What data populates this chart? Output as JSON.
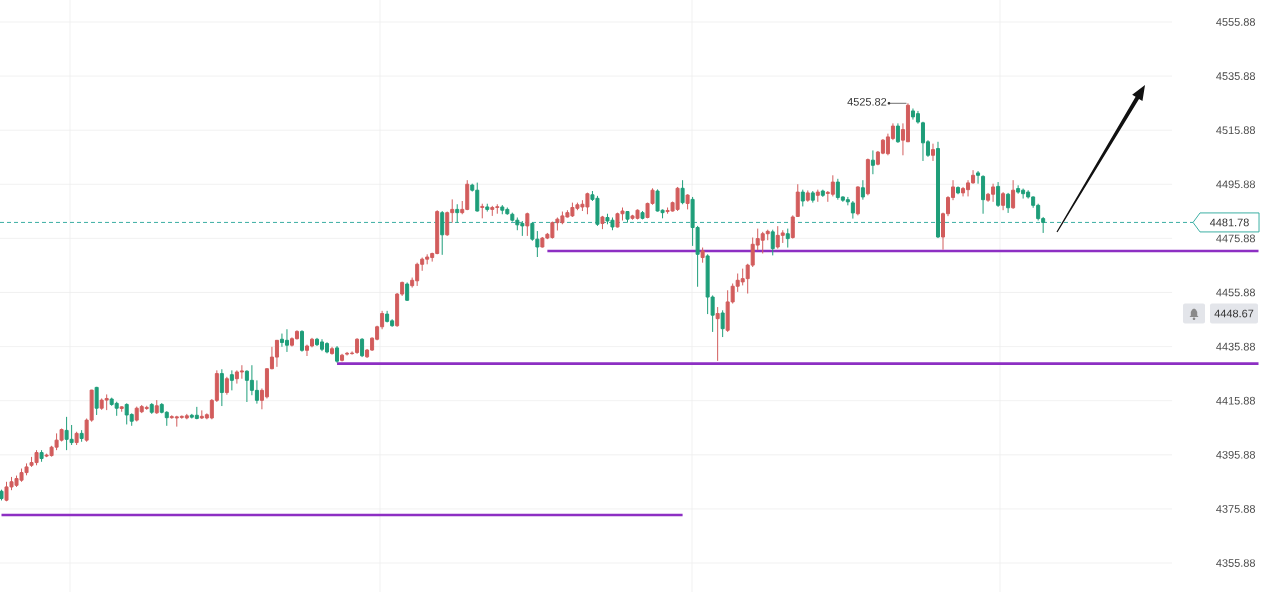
{
  "chart_data": {
    "type": "candlestick",
    "categories": [
      null,
      null,
      null,
      null,
      null,
      null,
      null,
      null,
      null,
      null,
      null,
      null,
      null,
      null,
      null,
      null,
      null,
      null,
      null,
      null,
      null,
      null,
      null,
      null,
      null,
      null,
      null,
      null,
      null,
      null,
      null,
      null,
      null,
      null,
      null,
      null,
      null,
      null,
      null,
      null,
      null,
      null,
      null,
      null,
      null,
      null,
      null,
      null,
      null,
      null,
      null,
      null,
      null,
      null,
      null,
      null,
      null,
      null,
      null,
      null,
      null,
      null,
      null,
      null,
      null,
      null,
      null,
      null,
      null,
      null,
      null,
      null,
      null,
      null,
      null,
      null,
      null,
      null,
      null,
      null,
      null,
      null,
      null,
      null,
      null,
      null,
      null,
      null,
      null,
      null,
      null,
      null,
      null,
      null,
      null,
      null,
      null,
      null,
      null,
      null,
      null,
      null,
      null,
      null,
      null,
      null,
      null,
      null,
      null,
      null,
      null,
      null,
      null,
      null,
      null,
      null,
      null,
      null,
      null,
      null,
      null,
      null,
      null,
      null,
      null,
      null,
      null,
      null,
      null,
      null,
      null,
      null,
      null,
      null,
      null,
      null,
      null,
      null,
      null,
      null,
      null,
      null,
      null,
      null,
      null,
      null,
      null,
      null,
      null,
      null,
      null,
      null,
      null,
      null,
      null,
      null,
      null,
      null,
      null,
      null,
      null,
      null,
      null,
      null,
      null,
      null,
      null,
      null,
      null,
      null,
      null,
      null,
      null,
      null,
      null,
      null,
      null,
      null,
      null,
      null,
      null,
      null,
      null,
      null,
      null,
      null,
      null,
      null,
      null,
      null,
      null,
      null,
      null,
      null,
      null,
      null,
      null,
      null,
      null,
      null,
      null,
      null,
      null,
      null,
      null,
      null,
      null,
      null,
      null,
      null,
      null,
      null,
      null,
      null,
      null,
      null,
      null,
      null,
      null,
      null,
      null,
      null,
      null,
      null,
      null,
      null,
      null,
      null,
      null,
      null,
      null,
      null,
      null,
      null,
      null,
      null,
      null,
      null,
      null,
      null,
      null,
      null,
      null,
      null,
      null,
      null,
      null,
      null,
      null,
      null,
      null,
      null
    ],
    "ohlc": [
      [
        4382.4,
        4383.0,
        4379.0,
        4379.7
      ],
      [
        4379.1,
        4385.9,
        4378.7,
        4384.0
      ],
      [
        4384.0,
        4387.7,
        4382.8,
        4385.9
      ],
      [
        4384.6,
        4388.2,
        4384.0,
        4387.1
      ],
      [
        4386.5,
        4390.8,
        4385.9,
        4389.3
      ],
      [
        4389.3,
        4392.7,
        4388.3,
        4391.4
      ],
      [
        4392.0,
        4395.1,
        4391.4,
        4393.0
      ],
      [
        4393.0,
        4397.6,
        4392.0,
        4396.7
      ],
      [
        4396.7,
        4397.6,
        4393.3,
        4394.5
      ],
      [
        4395.4,
        4396.3,
        4395.0,
        4395.8
      ],
      [
        4395.6,
        4399.2,
        4395.2,
        4398.7
      ],
      [
        4398.7,
        4403.8,
        4397.6,
        4401.3
      ],
      [
        4401.3,
        4405.6,
        4400.8,
        4405.2
      ],
      [
        4404.9,
        4409.9,
        4397.6,
        4401.6
      ],
      [
        4401.6,
        4406.9,
        4399.5,
        4400.4
      ],
      [
        4400.4,
        4404.4,
        4399.5,
        4403.8
      ],
      [
        4403.8,
        4405.0,
        4400.7,
        4401.9
      ],
      [
        4401.3,
        4409.3,
        4400.7,
        4408.7
      ],
      [
        4408.7,
        4419.9,
        4408.1,
        4419.8
      ],
      [
        4420.8,
        4421.0,
        4410.6,
        4413.1
      ],
      [
        4413.1,
        4416.7,
        4412.5,
        4416.1
      ],
      [
        4416.1,
        4418.2,
        4412.4,
        4416.7
      ],
      [
        4416.5,
        4417.0,
        4414.0,
        4414.5
      ],
      [
        4414.9,
        4415.5,
        4410.3,
        4413.1
      ],
      [
        4413.0,
        4413.8,
        4411.8,
        4413.6
      ],
      [
        4414.5,
        4414.9,
        4407.1,
        4410.6
      ],
      [
        4410.8,
        4411.2,
        4406.6,
        4408.3
      ],
      [
        4408.7,
        4413.7,
        4408.2,
        4413.1
      ],
      [
        4411.8,
        4414.3,
        4411.3,
        4413.7
      ],
      [
        4413.0,
        4414.0,
        4412.5,
        4413.4
      ],
      [
        4414.5,
        4415.0,
        4411.0,
        4411.6
      ],
      [
        4411.4,
        4416.1,
        4411.0,
        4414.0
      ],
      [
        4414.5,
        4415.0,
        4411.2,
        4411.6
      ],
      [
        4411.6,
        4412.0,
        4406.6,
        4409.6
      ],
      [
        4409.6,
        4410.5,
        4409.2,
        4410.0
      ],
      [
        4409.5,
        4410.3,
        4406.3,
        4409.9
      ],
      [
        4409.7,
        4410.4,
        4409.2,
        4410.1
      ],
      [
        4409.5,
        4411.0,
        4409.0,
        4410.3
      ],
      [
        4410.5,
        4411.0,
        4409.3,
        4409.8
      ],
      [
        4410.5,
        4413.6,
        4409.0,
        4409.3
      ],
      [
        4409.5,
        4412.3,
        4409.1,
        4410.1
      ],
      [
        4409.5,
        4411.2,
        4409.0,
        4410.7
      ],
      [
        4409.5,
        4416.5,
        4409.0,
        4416.0
      ],
      [
        4416.0,
        4427.1,
        4415.4,
        4425.9
      ],
      [
        4425.9,
        4427.5,
        4413.9,
        4418.9
      ],
      [
        4418.9,
        4424.7,
        4418.1,
        4424.0
      ],
      [
        4425.5,
        4427.1,
        4419.7,
        4423.4
      ],
      [
        4424.0,
        4427.1,
        4422.2,
        4426.5
      ],
      [
        4426.5,
        4429.0,
        4424.0,
        4426.9
      ],
      [
        4426.8,
        4427.1,
        4415.4,
        4423.4
      ],
      [
        4423.4,
        4429.0,
        4417.9,
        4419.7
      ],
      [
        4419.7,
        4423.4,
        4414.8,
        4416.0
      ],
      [
        4416.0,
        4420.4,
        4412.7,
        4419.7
      ],
      [
        4417.3,
        4427.8,
        4416.7,
        4427.7
      ],
      [
        4427.7,
        4435.8,
        4427.5,
        4432.0
      ],
      [
        4432.0,
        4438.3,
        4428.4,
        4438.2
      ],
      [
        4438.6,
        4440.7,
        4435.8,
        4437.4
      ],
      [
        4438.2,
        4442.3,
        4433.9,
        4436.4
      ],
      [
        4436.4,
        4439.3,
        4435.9,
        4438.8
      ],
      [
        4438.8,
        4441.9,
        4438.5,
        4441.5
      ],
      [
        4441.5,
        4441.9,
        4434.0,
        4434.5
      ],
      [
        4434.5,
        4436.6,
        4432.4,
        4436.1
      ],
      [
        4436.1,
        4439.1,
        4435.6,
        4438.6
      ],
      [
        4438.6,
        4439.1,
        4436.1,
        4436.6
      ],
      [
        4437.6,
        4438.6,
        4434.2,
        4434.9
      ],
      [
        4437.0,
        4437.5,
        4433.4,
        4433.9
      ],
      [
        4433.3,
        4435.8,
        4432.9,
        4435.1
      ],
      [
        4435.4,
        4436.1,
        4429.9,
        4430.5
      ],
      [
        4430.8,
        4433.2,
        4430.4,
        4432.7
      ],
      [
        4433.1,
        4433.9,
        4432.6,
        4433.4
      ],
      [
        4433.3,
        4434.1,
        4432.9,
        4433.5
      ],
      [
        4433.7,
        4439.0,
        4433.2,
        4438.6
      ],
      [
        4438.6,
        4439.0,
        4432.0,
        4432.5
      ],
      [
        4432.1,
        4435.0,
        4431.7,
        4434.6
      ],
      [
        4434.6,
        4439.3,
        4434.3,
        4439.0
      ],
      [
        4438.6,
        4443.6,
        4438.2,
        4443.2
      ],
      [
        4443.2,
        4449.1,
        4442.3,
        4448.1
      ],
      [
        4447.9,
        4449.1,
        4444.8,
        4445.2
      ],
      [
        4445.4,
        4446.0,
        4443.2,
        4443.6
      ],
      [
        4443.6,
        4455.7,
        4443.2,
        4455.3
      ],
      [
        4455.3,
        4459.9,
        4454.6,
        4459.6
      ],
      [
        4459.0,
        4459.6,
        4452.8,
        4453.0
      ],
      [
        4458.4,
        4461.4,
        4457.7,
        4460.4
      ],
      [
        4460.2,
        4466.9,
        4458.3,
        4466.3
      ],
      [
        4466.3,
        4468.8,
        4463.9,
        4468.2
      ],
      [
        4468.2,
        4470.0,
        4466.3,
        4469.0
      ],
      [
        4468.8,
        4470.6,
        4467.3,
        4470.3
      ],
      [
        4470.3,
        4486.3,
        4470.0,
        4485.8
      ],
      [
        4485.4,
        4486.0,
        4469.8,
        4477.2
      ],
      [
        4477.2,
        4485.8,
        4476.8,
        4485.4
      ],
      [
        4485.4,
        4490.3,
        4481.7,
        4486.6
      ],
      [
        4486.6,
        4488.5,
        4481.7,
        4485.4
      ],
      [
        4485.4,
        4489.7,
        4484.8,
        4486.6
      ],
      [
        4486.6,
        4497.4,
        4486.3,
        4495.9
      ],
      [
        4495.6,
        4496.1,
        4493.2,
        4493.7
      ],
      [
        4493.7,
        4496.5,
        4485.8,
        4486.0
      ],
      [
        4487.3,
        4488.7,
        4483.3,
        4487.7
      ],
      [
        4487.5,
        4488.7,
        4485.8,
        4486.6
      ],
      [
        4486.6,
        4487.9,
        4484.2,
        4487.3
      ],
      [
        4487.3,
        4488.5,
        4485.0,
        4487.6
      ],
      [
        4487.5,
        4488.2,
        4484.8,
        4486.3
      ],
      [
        4486.6,
        4487.3,
        4484.6,
        4485.0
      ],
      [
        4484.8,
        4485.4,
        4482.1,
        4482.6
      ],
      [
        4482.6,
        4483.6,
        4478.9,
        4480.9
      ],
      [
        4481.4,
        4482.3,
        4476.8,
        4480.5
      ],
      [
        4480.5,
        4485.4,
        4476.8,
        4485.0
      ],
      [
        4481.4,
        4481.8,
        4475.0,
        4475.6
      ],
      [
        4475.6,
        4478.6,
        4469.0,
        4472.7
      ],
      [
        4472.7,
        4476.4,
        4472.5,
        4476.0
      ],
      [
        4476.0,
        4477.9,
        4475.6,
        4477.4
      ],
      [
        4476.2,
        4482.1,
        4475.8,
        4481.7
      ],
      [
        4481.7,
        4483.6,
        4478.8,
        4483.0
      ],
      [
        4481.7,
        4485.8,
        4481.1,
        4484.2
      ],
      [
        4483.8,
        4486.3,
        4483.6,
        4485.4
      ],
      [
        4484.2,
        4489.1,
        4483.8,
        4487.3
      ],
      [
        4487.0,
        4489.1,
        4486.3,
        4488.3
      ],
      [
        4487.5,
        4490.0,
        4486.0,
        4488.5
      ],
      [
        4487.5,
        4492.8,
        4484.8,
        4492.4
      ],
      [
        4492.0,
        4493.4,
        4489.7,
        4490.3
      ],
      [
        4490.7,
        4491.6,
        4480.5,
        4481.1
      ],
      [
        4481.4,
        4484.2,
        4479.3,
        4483.8
      ],
      [
        4483.6,
        4485.0,
        4481.1,
        4482.3
      ],
      [
        4482.6,
        4483.6,
        4478.9,
        4480.1
      ],
      [
        4480.1,
        4485.4,
        4479.9,
        4485.0
      ],
      [
        4485.0,
        4487.3,
        4482.5,
        4486.0
      ],
      [
        4485.8,
        4486.0,
        4481.7,
        4483.0
      ],
      [
        4483.3,
        4484.6,
        4482.8,
        4484.2
      ],
      [
        4483.3,
        4486.6,
        4482.9,
        4486.3
      ],
      [
        4485.4,
        4486.0,
        4482.9,
        4483.3
      ],
      [
        4483.6,
        4489.1,
        4483.3,
        4488.8
      ],
      [
        4488.8,
        4494.4,
        4488.3,
        4493.7
      ],
      [
        4493.4,
        4494.0,
        4485.8,
        4486.0
      ],
      [
        4486.3,
        4486.6,
        4483.3,
        4485.4
      ],
      [
        4485.8,
        4487.3,
        4485.0,
        4486.2
      ],
      [
        4486.0,
        4489.5,
        4485.8,
        4489.1
      ],
      [
        4486.6,
        4494.9,
        4486.0,
        4494.4
      ],
      [
        4494.4,
        4497.4,
        4488.5,
        4489.1
      ],
      [
        4488.8,
        4492.2,
        4486.6,
        4491.9
      ],
      [
        4490.3,
        4491.2,
        4473.1,
        4479.9
      ],
      [
        4479.9,
        4480.5,
        4458.0,
        4470.0
      ],
      [
        4468.8,
        4472.5,
        4466.9,
        4471.3
      ],
      [
        4469.4,
        4470.0,
        4447.9,
        4454.2
      ],
      [
        4454.2,
        4454.8,
        4441.3,
        4447.5
      ],
      [
        4446.2,
        4450.5,
        4430.6,
        4448.1
      ],
      [
        4448.3,
        4449.3,
        4439.4,
        4442.5
      ],
      [
        4441.9,
        4456.7,
        4441.3,
        4452.4
      ],
      [
        4452.4,
        4459.2,
        4451.8,
        4458.2
      ],
      [
        4458.2,
        4462.9,
        4456.1,
        4460.4
      ],
      [
        4459.8,
        4464.7,
        4458.5,
        4461.0
      ],
      [
        4461.0,
        4466.5,
        4455.5,
        4466.0
      ],
      [
        4466.0,
        4476.2,
        4465.3,
        4473.7
      ],
      [
        4473.4,
        4479.5,
        4471.5,
        4475.8
      ],
      [
        4475.2,
        4478.3,
        4470.3,
        4477.6
      ],
      [
        4477.6,
        4479.1,
        4475.2,
        4478.5
      ],
      [
        4478.3,
        4479.1,
        4469.6,
        4472.1
      ],
      [
        4472.7,
        4480.4,
        4472.1,
        4477.0
      ],
      [
        4477.0,
        4478.9,
        4474.2,
        4477.9
      ],
      [
        4477.6,
        4479.5,
        4472.5,
        4475.8
      ],
      [
        4476.2,
        4484.4,
        4475.8,
        4483.8
      ],
      [
        4484.0,
        4495.9,
        4483.8,
        4493.0
      ],
      [
        4493.0,
        4493.9,
        4487.7,
        4489.7
      ],
      [
        4490.0,
        4493.6,
        4489.4,
        4492.7
      ],
      [
        4492.7,
        4493.4,
        4489.1,
        4490.0
      ],
      [
        4491.8,
        4493.9,
        4489.4,
        4493.0
      ],
      [
        4493.4,
        4493.9,
        4491.2,
        4491.8
      ],
      [
        4492.5,
        4493.4,
        4489.4,
        4492.9
      ],
      [
        4492.2,
        4499.2,
        4491.4,
        4496.7
      ],
      [
        4496.7,
        4497.9,
        4490.2,
        4491.0
      ],
      [
        4491.2,
        4491.4,
        4489.4,
        4490.0
      ],
      [
        4490.2,
        4491.2,
        4488.1,
        4489.4
      ],
      [
        4489.0,
        4489.7,
        4483.2,
        4485.3
      ],
      [
        4485.0,
        4495.1,
        4484.4,
        4494.9
      ],
      [
        4494.6,
        4497.4,
        4490.2,
        4491.2
      ],
      [
        4492.4,
        4505.4,
        4491.8,
        4505.0
      ],
      [
        4504.8,
        4508.4,
        4499.6,
        4502.9
      ],
      [
        4503.3,
        4508.2,
        4502.9,
        4507.8
      ],
      [
        4507.4,
        4512.6,
        4507.0,
        4512.2
      ],
      [
        4507.2,
        4514.6,
        4506.6,
        4513.4
      ],
      [
        4512.8,
        4518.4,
        4512.2,
        4517.4
      ],
      [
        4517.4,
        4518.4,
        4511.2,
        4511.6
      ],
      [
        4512.2,
        4518.4,
        4506.6,
        4516.1
      ],
      [
        4511.6,
        4525.82,
        4511.6,
        4525.1
      ],
      [
        4523.0,
        4523.9,
        4519.8,
        4520.8
      ],
      [
        4522.0,
        4523.0,
        4518.3,
        4518.9
      ],
      [
        4518.6,
        4519.0,
        4504.5,
        4511.2
      ],
      [
        4511.6,
        4512.2,
        4506.0,
        4506.6
      ],
      [
        4506.6,
        4510.9,
        4504.5,
        4508.7
      ],
      [
        4509.1,
        4511.6,
        4476.0,
        4476.4
      ],
      [
        4476.4,
        4485.4,
        4471.7,
        4485.0
      ],
      [
        4485.0,
        4491.5,
        4484.1,
        4491.0
      ],
      [
        4491.0,
        4497.4,
        4490.0,
        4494.9
      ],
      [
        4494.7,
        4495.1,
        4492.2,
        4492.7
      ],
      [
        4492.7,
        4494.9,
        4491.4,
        4494.3
      ],
      [
        4493.9,
        4497.4,
        4491.4,
        4496.4
      ],
      [
        4496.4,
        4501.1,
        4496.1,
        4499.2
      ],
      [
        4500.1,
        4500.8,
        4496.1,
        4499.2
      ],
      [
        4498.8,
        4499.2,
        4485.0,
        4490.2
      ],
      [
        4490.0,
        4492.7,
        4489.4,
        4492.2
      ],
      [
        4492.2,
        4496.1,
        4489.4,
        4494.9
      ],
      [
        4495.1,
        4496.7,
        4487.5,
        4488.1
      ],
      [
        4488.1,
        4493.0,
        4486.3,
        4492.4
      ],
      [
        4492.2,
        4492.7,
        4485.3,
        4487.2
      ],
      [
        4487.2,
        4497.4,
        4486.8,
        4493.7
      ],
      [
        4494.3,
        4495.5,
        4492.4,
        4493.0
      ],
      [
        4493.7,
        4494.3,
        4490.6,
        4492.4
      ],
      [
        4493.0,
        4493.7,
        4490.6,
        4491.2
      ],
      [
        4491.2,
        4491.4,
        4487.2,
        4488.1
      ],
      [
        4488.1,
        4488.7,
        4482.5,
        4483.2
      ],
      [
        4483.2,
        4483.8,
        4477.9,
        4481.78
      ],
      null,
      null,
      null,
      null,
      null,
      null,
      null,
      null,
      null,
      null,
      null,
      null,
      null,
      null,
      null,
      null,
      null,
      null,
      null,
      null,
      null,
      null,
      null,
      null,
      null,
      null,
      null,
      null,
      null,
      null,
      null,
      null,
      null,
      null,
      null,
      null,
      null,
      null,
      null,
      null,
      null,
      null,
      null
    ],
    "colors": [
      "#1f9e7a",
      "#d25d5d",
      "#d25d5d",
      "#d25d5d",
      "#d25d5d",
      "#d25d5d",
      "#d25d5d",
      "#d25d5d",
      "#1f9e7a",
      "#d25d5d",
      "#d25d5d",
      "#d25d5d",
      "#d25d5d",
      "#1f9e7a",
      "#1f9e7a",
      "#d25d5d",
      "#1f9e7a",
      "#d25d5d",
      "#d25d5d",
      "#1f9e7a",
      "#d25d5d",
      "#d25d5d",
      "#1f9e7a",
      "#1f9e7a",
      "#d25d5d",
      "#1f9e7a",
      "#1f9e7a",
      "#d25d5d",
      "#d25d5d",
      "#d25d5d",
      "#1f9e7a",
      "#d25d5d",
      "#1f9e7a",
      "#1f9e7a",
      "#d25d5d",
      "#d25d5d",
      "#d25d5d",
      "#d25d5d",
      "#1f9e7a",
      "#1f9e7a",
      "#d25d5d",
      "#d25d5d",
      "#d25d5d",
      "#d25d5d",
      "#1f9e7a",
      "#d25d5d",
      "#1f9e7a",
      "#d25d5d",
      "#d25d5d",
      "#1f9e7a",
      "#1f9e7a",
      "#1f9e7a",
      "#d25d5d",
      "#d25d5d",
      "#d25d5d",
      "#d25d5d",
      "#1f9e7a",
      "#1f9e7a",
      "#d25d5d",
      "#d25d5d",
      "#1f9e7a",
      "#d25d5d",
      "#d25d5d",
      "#1f9e7a",
      "#1f9e7a",
      "#1f9e7a",
      "#d25d5d",
      "#1f9e7a",
      "#d25d5d",
      "#d25d5d",
      "#d25d5d",
      "#d25d5d",
      "#1f9e7a",
      "#d25d5d",
      "#d25d5d",
      "#d25d5d",
      "#d25d5d",
      "#1f9e7a",
      "#1f9e7a",
      "#d25d5d",
      "#d25d5d",
      "#1f9e7a",
      "#d25d5d",
      "#d25d5d",
      "#d25d5d",
      "#d25d5d",
      "#d25d5d",
      "#d25d5d",
      "#1f9e7a",
      "#d25d5d",
      "#d25d5d",
      "#1f9e7a",
      "#d25d5d",
      "#d25d5d",
      "#1f9e7a",
      "#1f9e7a",
      "#d25d5d",
      "#1f9e7a",
      "#d25d5d",
      "#d25d5d",
      "#1f9e7a",
      "#1f9e7a",
      "#1f9e7a",
      "#1f9e7a",
      "#1f9e7a",
      "#d25d5d",
      "#1f9e7a",
      "#1f9e7a",
      "#d25d5d",
      "#d25d5d",
      "#d25d5d",
      "#d25d5d",
      "#d25d5d",
      "#d25d5d",
      "#d25d5d",
      "#d25d5d",
      "#d25d5d",
      "#d25d5d",
      "#1f9e7a",
      "#1f9e7a",
      "#d25d5d",
      "#1f9e7a",
      "#1f9e7a",
      "#d25d5d",
      "#d25d5d",
      "#1f9e7a",
      "#d25d5d",
      "#d25d5d",
      "#1f9e7a",
      "#d25d5d",
      "#d25d5d",
      "#1f9e7a",
      "#1f9e7a",
      "#d25d5d",
      "#d25d5d",
      "#d25d5d",
      "#1f9e7a",
      "#d25d5d",
      "#1f9e7a",
      "#1f9e7a",
      "#d25d5d",
      "#1f9e7a",
      "#1f9e7a",
      "#d25d5d",
      "#1f9e7a",
      "#d25d5d",
      "#d25d5d",
      "#d25d5d",
      "#d25d5d",
      "#d25d5d",
      "#d25d5d",
      "#d25d5d",
      "#d25d5d",
      "#d25d5d",
      "#1f9e7a",
      "#d25d5d",
      "#d25d5d",
      "#1f9e7a",
      "#d25d5d",
      "#d25d5d",
      "#1f9e7a",
      "#d25d5d",
      "#1f9e7a",
      "#d25d5d",
      "#1f9e7a",
      "#d25d5d",
      "#d25d5d",
      "#1f9e7a",
      "#1f9e7a",
      "#1f9e7a",
      "#1f9e7a",
      "#d25d5d",
      "#1f9e7a",
      "#d25d5d",
      "#1f9e7a",
      "#d25d5d",
      "#d25d5d",
      "#d25d5d",
      "#d25d5d",
      "#1f9e7a",
      "#d25d5d",
      "#d25d5d",
      "#1f9e7a",
      "#1f9e7a",
      "#1f9e7a",
      "#1f9e7a",
      "#d25d5d",
      "#1f9e7a",
      "#d25d5d",
      "#d25d5d",
      "#d25d5d",
      "#1f9e7a",
      "#d25d5d",
      "#d25d5d",
      "#d25d5d",
      "#1f9e7a",
      "#1f9e7a",
      "#d25d5d",
      "#d25d5d",
      "#1f9e7a",
      "#d25d5d",
      "#1f9e7a",
      "#d25d5d",
      "#1f9e7a",
      "#1f9e7a",
      "#1f9e7a",
      "#1f9e7a",
      "#1f9e7a",
      "#1f9e7a",
      null,
      null,
      null,
      null,
      null,
      null,
      null,
      null,
      null,
      null,
      null,
      null,
      null,
      null,
      null,
      null,
      null,
      null,
      null,
      null,
      null,
      null,
      null,
      null,
      null,
      null,
      null,
      null,
      null,
      null,
      null,
      null,
      null,
      null,
      null,
      null,
      null,
      null,
      null,
      null,
      null,
      null,
      null
    ],
    "series": [
      {
        "type": "line",
        "color": "#8d2fc3",
        "values": [
          4373.6,
          4373.6,
          4373.6,
          4373.6,
          4373.6,
          4373.6,
          4373.6,
          4373.6,
          4373.6,
          4373.6,
          4373.6,
          4373.6,
          4373.6,
          4373.6,
          4373.6,
          4373.6,
          4373.6,
          4373.6,
          4373.6,
          4373.6,
          4373.6,
          4373.6,
          4373.6,
          4373.6,
          4373.6,
          4373.6,
          4373.6,
          4373.6,
          4373.6,
          4373.6,
          4373.6,
          4373.6,
          4373.6,
          4373.6,
          4373.6,
          4373.6,
          4373.6,
          4373.6,
          4373.6,
          4373.6,
          4373.6,
          4373.6,
          4373.6,
          4373.6,
          4373.6,
          4373.6,
          4373.6,
          4373.6,
          4373.6,
          4373.6,
          4373.6,
          4373.6,
          4373.6,
          4373.6,
          4373.6,
          4373.6,
          4373.6,
          4373.6,
          4373.6,
          4373.6,
          4373.6,
          4373.6,
          4373.6,
          4373.6,
          4373.6,
          4373.6,
          4373.6,
          4373.6,
          4373.6,
          4373.6,
          4373.6,
          4373.6,
          4373.6,
          4373.6,
          4373.6,
          4373.6,
          4373.6,
          4373.6,
          4373.6,
          4373.6,
          4373.6,
          4373.6,
          4373.6,
          4373.6,
          4373.6,
          4373.6,
          4373.6,
          4373.6,
          4373.6,
          4373.6,
          4373.6,
          4373.6,
          4373.6,
          4373.6,
          4373.6,
          4373.6,
          4373.6,
          4373.6,
          4373.6,
          4373.6,
          4373.6,
          4373.6,
          4373.6,
          4373.6,
          4373.6,
          4373.6,
          4373.6,
          4373.6,
          4373.6,
          4373.6,
          4373.6,
          4373.6,
          4373.6,
          4373.6,
          4373.6,
          4373.6,
          4373.6,
          4373.6,
          4373.6,
          4373.6,
          4373.6,
          4373.6,
          4373.6,
          4373.6,
          4373.6,
          4373.6,
          4373.6,
          4373.6,
          4373.6,
          4373.6,
          4373.6,
          4373.6,
          4373.6,
          4373.6,
          4373.6,
          4373.6,
          4373.6,
          null,
          null,
          null,
          null,
          null,
          null,
          null,
          null,
          null,
          null,
          null,
          null,
          null,
          null,
          null,
          null,
          null,
          null,
          null,
          null,
          null,
          null,
          null,
          null,
          null,
          null,
          null,
          null,
          null,
          null,
          null,
          null,
          null,
          null,
          null,
          null,
          null,
          null,
          null,
          null,
          null,
          null,
          null,
          null,
          null,
          null,
          null,
          null,
          null,
          null,
          null,
          null,
          null,
          null,
          null,
          null,
          null,
          null,
          null,
          null,
          null,
          null,
          null,
          null,
          null,
          null,
          null,
          null,
          null,
          null,
          null,
          null,
          null,
          null,
          null,
          null,
          null,
          null,
          null,
          null,
          null,
          null,
          null,
          null,
          null,
          null,
          null,
          null,
          null,
          null,
          null,
          null,
          null,
          null,
          null,
          null,
          null,
          null,
          null,
          null,
          null,
          null,
          null,
          null,
          null,
          null,
          null,
          null,
          null,
          null,
          null,
          null,
          null,
          null,
          null
        ]
      },
      {
        "type": "line",
        "color": "#8d2fc3",
        "values": [
          null,
          null,
          null,
          null,
          null,
          null,
          null,
          null,
          null,
          null,
          null,
          null,
          null,
          null,
          null,
          null,
          null,
          null,
          null,
          null,
          null,
          null,
          null,
          null,
          null,
          null,
          null,
          null,
          null,
          null,
          null,
          null,
          null,
          null,
          null,
          null,
          null,
          null,
          null,
          null,
          null,
          null,
          null,
          null,
          null,
          null,
          null,
          null,
          null,
          null,
          null,
          null,
          null,
          null,
          null,
          null,
          null,
          null,
          null,
          null,
          null,
          null,
          null,
          null,
          null,
          null,
          null,
          4429.6,
          4429.6,
          4429.6,
          4429.6,
          4429.6,
          4429.6,
          4429.6,
          4429.6,
          4429.6,
          4429.6,
          4429.6,
          4429.6,
          4429.6,
          4429.6,
          4429.6,
          4429.6,
          4429.6,
          4429.6,
          4429.6,
          4429.6,
          4429.6,
          4429.6,
          4429.6,
          4429.6,
          4429.6,
          4429.6,
          4429.6,
          4429.6,
          4429.6,
          4429.6,
          4429.6,
          4429.6,
          4429.6,
          4429.6,
          4429.6,
          4429.6,
          4429.6,
          4429.6,
          4429.6,
          4429.6,
          4429.6,
          4429.6,
          4429.6,
          4429.6,
          4429.6,
          4429.6,
          4429.6,
          4429.6,
          4429.6,
          4429.6,
          4429.6,
          4429.6,
          4429.6,
          4429.6,
          4429.6,
          4429.6,
          4429.6,
          4429.6,
          4429.6,
          4429.6,
          4429.6,
          4429.6,
          4429.6,
          4429.6,
          4429.6,
          4429.6,
          4429.6,
          4429.6,
          4429.6,
          4429.6,
          4429.6,
          4429.6,
          4429.6,
          4429.6,
          4429.6,
          4429.6,
          4429.6,
          4429.6,
          4429.6,
          4429.6,
          4429.6,
          4429.6,
          4429.6,
          4429.6,
          4429.6,
          4429.6,
          4429.6,
          4429.6,
          4429.6,
          4429.6,
          4429.6,
          4429.6,
          4429.6,
          4429.6,
          4429.6,
          4429.6,
          4429.6,
          4429.6,
          4429.6,
          4429.6,
          4429.6,
          4429.6,
          4429.6,
          4429.6,
          4429.6,
          4429.6,
          4429.6,
          4429.6,
          4429.6,
          4429.6,
          4429.6,
          4429.6,
          4429.6,
          4429.6,
          4429.6,
          4429.6,
          4429.6,
          4429.6,
          4429.6,
          4429.6,
          4429.6,
          4429.6,
          4429.6,
          4429.6,
          4429.6,
          4429.6,
          4429.6,
          4429.6,
          4429.6,
          4429.6,
          4429.6,
          4429.6,
          4429.6,
          4429.6,
          4429.6,
          4429.6,
          4429.6,
          4429.6,
          4429.6,
          4429.6,
          4429.6,
          4429.6,
          4429.6,
          4429.6,
          4429.6,
          4429.6,
          4429.6,
          4429.6,
          4429.6,
          4429.6,
          4429.6,
          4429.6,
          4429.6,
          4429.6,
          4429.6,
          4429.6,
          4429.6,
          4429.6,
          4429.6,
          4429.6,
          4429.6,
          4429.6,
          4429.6,
          4429.6,
          4429.6,
          4429.6,
          4429.6,
          4429.6,
          4429.6,
          4429.6,
          4429.6,
          4429.6,
          4429.6,
          4429.6,
          4429.6,
          4429.6,
          4429.6,
          4429.6,
          4429.6,
          4429.6,
          4429.6,
          4429.6,
          4429.6,
          4429.6,
          4429.6
        ]
      },
      {
        "type": "line",
        "color": "#8d2fc3",
        "values": [
          null,
          null,
          null,
          null,
          null,
          null,
          null,
          null,
          null,
          null,
          null,
          null,
          null,
          null,
          null,
          null,
          null,
          null,
          null,
          null,
          null,
          null,
          null,
          null,
          null,
          null,
          null,
          null,
          null,
          null,
          null,
          null,
          null,
          null,
          null,
          null,
          null,
          null,
          null,
          null,
          null,
          null,
          null,
          null,
          null,
          null,
          null,
          null,
          null,
          null,
          null,
          null,
          null,
          null,
          null,
          null,
          null,
          null,
          null,
          null,
          null,
          null,
          null,
          null,
          null,
          null,
          null,
          null,
          null,
          null,
          null,
          null,
          null,
          null,
          null,
          null,
          null,
          null,
          null,
          null,
          null,
          null,
          null,
          null,
          null,
          null,
          null,
          null,
          null,
          null,
          null,
          null,
          null,
          null,
          null,
          null,
          null,
          null,
          null,
          null,
          null,
          null,
          null,
          null,
          null,
          null,
          null,
          null,
          null,
          4471.2,
          4471.2,
          4471.2,
          4471.2,
          4471.2,
          4471.2,
          4471.2,
          4471.2,
          4471.2,
          4471.2,
          4471.2,
          4471.2,
          4471.2,
          4471.2,
          4471.2,
          4471.2,
          4471.2,
          4471.2,
          4471.2,
          4471.2,
          4471.2,
          4471.2,
          4471.2,
          4471.2,
          4471.2,
          4471.2,
          4471.2,
          4471.2,
          4471.2,
          4471.2,
          4471.2,
          4471.2,
          4471.2,
          4471.2,
          4471.2,
          4471.2,
          4471.2,
          4471.2,
          4471.2,
          4471.2,
          4471.2,
          4471.2,
          4471.2,
          4471.2,
          4471.2,
          4471.2,
          4471.2,
          4471.2,
          4471.2,
          4471.2,
          4471.2,
          4471.2,
          4471.2,
          4471.2,
          4471.2,
          4471.2,
          4471.2,
          4471.2,
          4471.2,
          4471.2,
          4471.2,
          4471.2,
          4471.2,
          4471.2,
          4471.2,
          4471.2,
          4471.2,
          4471.2,
          4471.2,
          4471.2,
          4471.2,
          4471.2,
          4471.2,
          4471.2,
          4471.2,
          4471.2,
          4471.2,
          4471.2,
          4471.2,
          4471.2,
          4471.2,
          4471.2,
          4471.2,
          4471.2,
          4471.2,
          4471.2,
          4471.2,
          4471.2,
          4471.2,
          4471.2,
          4471.2,
          4471.2,
          4471.2,
          4471.2,
          4471.2,
          4471.2,
          4471.2,
          4471.2,
          4471.2,
          4471.2,
          4471.2,
          4471.2,
          4471.2,
          4471.2,
          4471.2,
          4471.2,
          4471.2,
          4471.2,
          4471.2,
          4471.2,
          4471.2,
          4471.2,
          4471.2,
          4471.2,
          4471.2,
          4471.2,
          4471.2,
          4471.2,
          4471.2,
          4471.2,
          4471.2,
          4471.2,
          4471.2,
          4471.2,
          4471.2,
          4471.2,
          4471.2,
          4471.2,
          4471.2,
          4471.2,
          4471.2,
          4471.2,
          4471.2,
          4471.2,
          4471.2,
          4471.2,
          4471.2,
          4471.2,
          4471.2,
          4471.2,
          4471.2,
          4471.2,
          4471.2
        ]
      }
    ],
    "ylim": [
      4345.16,
      4564.01
    ],
    "yticks": [
      4355.88,
      4375.88,
      4395.88,
      4415.88,
      4435.88,
      4455.88,
      4475.88,
      4495.88,
      4515.88,
      4535.88,
      4555.88
    ],
    "tick_labels": "y",
    "grid": true,
    "ref_lines": [
      {
        "axis": "y",
        "value": 4481.78,
        "label": "4481.78",
        "color": "#26a69a",
        "line_style": "dashed"
      }
    ],
    "annotations": [
      "4525.82",
      "4448.67"
    ]
  }
}
